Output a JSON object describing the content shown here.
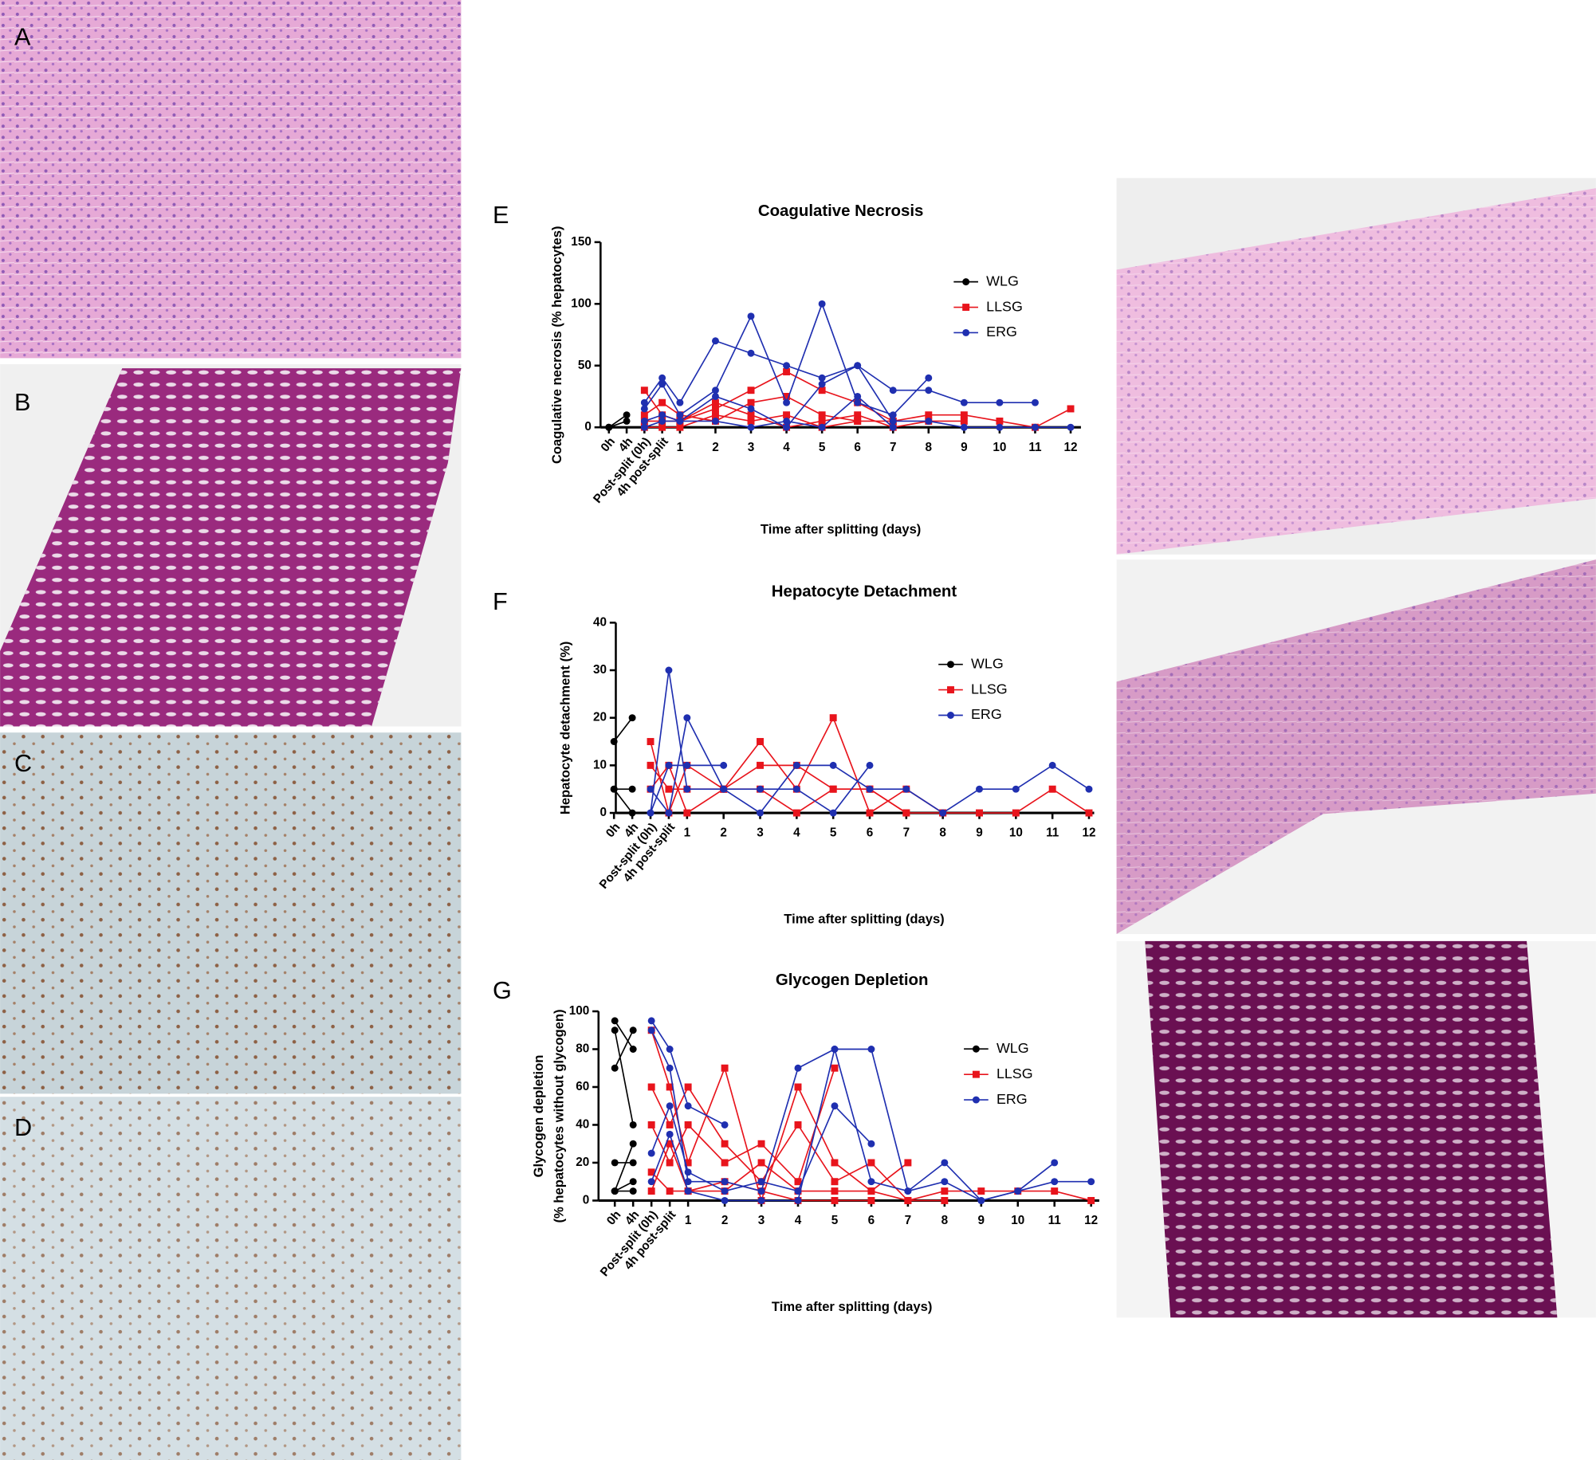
{
  "image_panels": [
    "A",
    "B",
    "C",
    "D"
  ],
  "chart_data": [
    {
      "type": "line",
      "panel": "E",
      "title": "Coagulative Necrosis",
      "xlabel": "Time after splitting (days)",
      "ylabel": [
        "Coagulative necrosis  (% hepatocytes)"
      ],
      "categories": [
        "0h",
        "4h",
        "Post-split (0h)",
        "4h post-split",
        "1",
        "2",
        "3",
        "4",
        "5",
        "6",
        "7",
        "8",
        "9",
        "10",
        "11",
        "12"
      ],
      "ylim": [
        0,
        150
      ],
      "yticks": [
        0,
        50,
        100,
        150
      ],
      "series": [
        {
          "name": "WLG",
          "color": "#000000",
          "marker": "circle",
          "lines": [
            [
              0,
              10,
              null,
              null,
              null,
              null,
              null,
              null,
              null,
              null,
              null,
              null,
              null,
              null,
              null,
              null
            ],
            [
              0,
              5,
              null,
              null,
              null,
              null,
              null,
              null,
              null,
              null,
              null,
              null,
              null,
              null,
              null,
              null
            ]
          ]
        },
        {
          "name": "LLSG",
          "color": "#e8141c",
          "marker": "square",
          "lines": [
            [
              null,
              null,
              30,
              10,
              5,
              15,
              30,
              45,
              30,
              20,
              5,
              null,
              null,
              null,
              null,
              null
            ],
            [
              null,
              null,
              10,
              20,
              10,
              5,
              20,
              25,
              10,
              5,
              5,
              10,
              10,
              5,
              0,
              15
            ],
            [
              null,
              null,
              5,
              5,
              5,
              20,
              10,
              0,
              5,
              10,
              0,
              5,
              5,
              null,
              null,
              null
            ],
            [
              null,
              null,
              0,
              0,
              0,
              10,
              5,
              10,
              0,
              5,
              null,
              null,
              null,
              null,
              null,
              null
            ]
          ]
        },
        {
          "name": "ERG",
          "color": "#1f2fb0",
          "marker": "circle",
          "lines": [
            [
              null,
              null,
              20,
              40,
              20,
              70,
              60,
              50,
              40,
              50,
              30,
              30,
              20,
              20,
              20,
              null
            ],
            [
              null,
              null,
              15,
              35,
              10,
              30,
              90,
              20,
              100,
              20,
              10,
              40,
              null,
              null,
              null,
              null
            ],
            [
              null,
              null,
              5,
              10,
              5,
              25,
              15,
              0,
              35,
              50,
              5,
              5,
              0,
              0,
              0,
              0
            ],
            [
              null,
              null,
              0,
              5,
              5,
              5,
              0,
              5,
              0,
              25,
              0,
              null,
              null,
              null,
              null,
              null
            ]
          ]
        }
      ]
    },
    {
      "type": "line",
      "panel": "F",
      "title": "Hepatocyte Detachment",
      "xlabel": "Time after splitting (days)",
      "ylabel": [
        "Hepatocyte detachment (%)"
      ],
      "categories": [
        "0h",
        "4h",
        "Post-split (0h)",
        "4h post-split",
        "1",
        "2",
        "3",
        "4",
        "5",
        "6",
        "7",
        "8",
        "9",
        "10",
        "11",
        "12"
      ],
      "ylim": [
        0,
        40
      ],
      "yticks": [
        0,
        10,
        20,
        30,
        40
      ],
      "series": [
        {
          "name": "WLG",
          "color": "#000000",
          "marker": "circle",
          "lines": [
            [
              15,
              20,
              null,
              null,
              null,
              null,
              null,
              null,
              null,
              null,
              null,
              null,
              null,
              null,
              null,
              null
            ],
            [
              5,
              5,
              null,
              null,
              null,
              null,
              null,
              null,
              null,
              null,
              null,
              null,
              null,
              null,
              null,
              null
            ],
            [
              5,
              0,
              null,
              null,
              null,
              null,
              null,
              null,
              null,
              null,
              null,
              null,
              null,
              null,
              null,
              null
            ]
          ]
        },
        {
          "name": "LLSG",
          "color": "#e8141c",
          "marker": "square",
          "lines": [
            [
              null,
              null,
              15,
              0,
              10,
              5,
              15,
              5,
              20,
              0,
              5,
              0,
              0,
              0,
              5,
              0
            ],
            [
              null,
              null,
              10,
              5,
              5,
              5,
              10,
              10,
              5,
              5,
              0,
              null,
              null,
              null,
              null,
              null
            ],
            [
              null,
              null,
              5,
              10,
              0,
              5,
              5,
              0,
              5,
              5,
              0,
              0,
              null,
              null,
              null,
              null
            ]
          ]
        },
        {
          "name": "ERG",
          "color": "#1f2fb0",
          "marker": "circle",
          "lines": [
            [
              null,
              null,
              0,
              30,
              5,
              5,
              0,
              10,
              10,
              5,
              5,
              0,
              5,
              5,
              10,
              5
            ],
            [
              null,
              null,
              5,
              0,
              20,
              5,
              5,
              5,
              0,
              10,
              null,
              null,
              null,
              null,
              null,
              null
            ],
            [
              null,
              null,
              0,
              10,
              10,
              10,
              null,
              null,
              null,
              null,
              null,
              null,
              null,
              null,
              null,
              null
            ]
          ]
        }
      ]
    },
    {
      "type": "line",
      "panel": "G",
      "title": "Glycogen Depletion",
      "xlabel": "Time after splitting (days)",
      "ylabel": [
        "Glycogen depletion",
        "(% hepatocytes without glycogen)"
      ],
      "categories": [
        "0h",
        "4h",
        "Post-split (0h)",
        "4h post-split",
        "1",
        "2",
        "3",
        "4",
        "5",
        "6",
        "7",
        "8",
        "9",
        "10",
        "11",
        "12"
      ],
      "ylim": [
        0,
        100
      ],
      "yticks": [
        0,
        20,
        40,
        60,
        80,
        100
      ],
      "series": [
        {
          "name": "WLG",
          "color": "#000000",
          "marker": "circle",
          "lines": [
            [
              95,
              80,
              null,
              null,
              null,
              null,
              null,
              null,
              null,
              null,
              null,
              null,
              null,
              null,
              null,
              null
            ],
            [
              90,
              40,
              null,
              null,
              null,
              null,
              null,
              null,
              null,
              null,
              null,
              null,
              null,
              null,
              null,
              null
            ],
            [
              70,
              90,
              null,
              null,
              null,
              null,
              null,
              null,
              null,
              null,
              null,
              null,
              null,
              null,
              null,
              null
            ],
            [
              20,
              20,
              null,
              null,
              null,
              null,
              null,
              null,
              null,
              null,
              null,
              null,
              null,
              null,
              null,
              null
            ],
            [
              5,
              30,
              null,
              null,
              null,
              null,
              null,
              null,
              null,
              null,
              null,
              null,
              null,
              null,
              null,
              null
            ],
            [
              5,
              10,
              null,
              null,
              null,
              null,
              null,
              null,
              null,
              null,
              null,
              null,
              null,
              null,
              null,
              null
            ],
            [
              5,
              5,
              null,
              null,
              null,
              null,
              null,
              null,
              null,
              null,
              null,
              null,
              null,
              null,
              null,
              null
            ]
          ]
        },
        {
          "name": "LLSG",
          "color": "#e8141c",
          "marker": "square",
          "lines": [
            [
              null,
              null,
              90,
              60,
              20,
              70,
              0,
              60,
              20,
              5,
              20,
              null,
              null,
              null,
              null,
              null
            ],
            [
              null,
              null,
              60,
              40,
              60,
              30,
              10,
              40,
              10,
              20,
              0,
              5,
              5,
              5,
              5,
              0
            ],
            [
              null,
              null,
              40,
              20,
              40,
              20,
              30,
              10,
              70,
              null,
              null,
              null,
              null,
              null,
              null,
              null
            ],
            [
              null,
              null,
              15,
              5,
              5,
              5,
              20,
              5,
              5,
              5,
              0,
              0,
              null,
              null,
              null,
              null
            ],
            [
              null,
              null,
              5,
              30,
              5,
              10,
              5,
              0,
              0,
              0,
              null,
              null,
              null,
              null,
              null,
              null
            ]
          ]
        },
        {
          "name": "ERG",
          "color": "#1f2fb0",
          "marker": "circle",
          "lines": [
            [
              null,
              null,
              95,
              80,
              50,
              40,
              null,
              null,
              null,
              null,
              null,
              null,
              null,
              null,
              null,
              null
            ],
            [
              null,
              null,
              90,
              70,
              10,
              10,
              5,
              70,
              80,
              80,
              5,
              10,
              0,
              5,
              20,
              null
            ],
            [
              null,
              null,
              25,
              50,
              15,
              5,
              10,
              5,
              50,
              30,
              null,
              null,
              null,
              null,
              null,
              null
            ],
            [
              null,
              null,
              10,
              35,
              5,
              0,
              0,
              0,
              80,
              10,
              5,
              20,
              0,
              5,
              10,
              10
            ]
          ]
        }
      ]
    }
  ]
}
